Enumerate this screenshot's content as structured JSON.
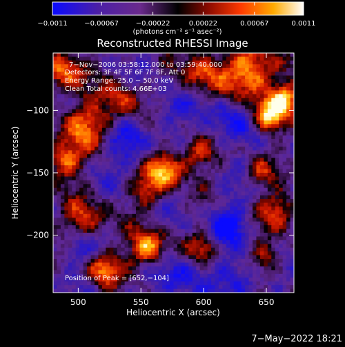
{
  "chart_data": {
    "type": "heatmap",
    "title": "Reconstructed RHESSI Image",
    "xlabel": "Heliocentric X (arcsec)",
    "ylabel": "Heliocentric Y (arcsec)",
    "xlim": [
      480,
      672
    ],
    "ylim": [
      -246,
      -54
    ],
    "xticks": [
      500,
      550,
      600,
      650
    ],
    "yticks": [
      -100,
      -150,
      -200
    ],
    "xtick_labels": [
      "500",
      "550",
      "600",
      "650"
    ],
    "ytick_labels": [
      "−100",
      "−150",
      "−200"
    ],
    "colorbar": {
      "range": [
        -0.0011,
        0.0011
      ],
      "ticks": [
        -0.0011,
        -0.00067,
        -0.00022,
        0.00022,
        0.00067,
        0.0011
      ],
      "tick_labels": [
        "−0.0011",
        "−0.00067",
        "−0.00022",
        "0.00022",
        "0.00067",
        "0.0011"
      ],
      "unit_label": "(photons cm⁻² s⁻¹ asec⁻²)"
    },
    "annotations": [
      "7−Nov−2006 03:58:12.000 to 03:59:40.000",
      "Detectors: 3F 4F 5F 6F 7F 8F, Att 0",
      "Energy Range: 25.0 − 50.0 keV",
      "Clean     Total counts: 4.66E+03",
      "Position of Peak = [652,−104]"
    ],
    "peak": {
      "x": 652,
      "y": -104
    },
    "bright_regions": [
      {
        "x": 490,
        "y": -68,
        "sigma": 12,
        "amp": 0.7
      },
      {
        "x": 505,
        "y": -112,
        "sigma": 14,
        "amp": 0.65
      },
      {
        "x": 488,
        "y": -140,
        "sigma": 10,
        "amp": 0.7
      },
      {
        "x": 535,
        "y": -92,
        "sigma": 11,
        "amp": 0.5
      },
      {
        "x": 600,
        "y": -70,
        "sigma": 12,
        "amp": 0.6
      },
      {
        "x": 640,
        "y": -68,
        "sigma": 16,
        "amp": 0.8
      },
      {
        "x": 652,
        "y": -104,
        "sigma": 9,
        "amp": 1.0
      },
      {
        "x": 665,
        "y": -90,
        "sigma": 8,
        "amp": 0.7
      },
      {
        "x": 570,
        "y": -148,
        "sigma": 10,
        "amp": 0.9
      },
      {
        "x": 595,
        "y": -135,
        "sigma": 9,
        "amp": 0.55
      },
      {
        "x": 555,
        "y": -165,
        "sigma": 9,
        "amp": 0.5
      },
      {
        "x": 505,
        "y": -188,
        "sigma": 12,
        "amp": 0.6
      },
      {
        "x": 520,
        "y": -228,
        "sigma": 10,
        "amp": 0.65
      },
      {
        "x": 555,
        "y": -210,
        "sigma": 10,
        "amp": 0.9
      },
      {
        "x": 600,
        "y": -210,
        "sigma": 8,
        "amp": 0.5
      },
      {
        "x": 660,
        "y": -180,
        "sigma": 10,
        "amp": 0.6
      },
      {
        "x": 650,
        "y": -218,
        "sigma": 9,
        "amp": 0.5
      },
      {
        "x": 645,
        "y": -150,
        "sigma": 8,
        "amp": 0.45
      }
    ],
    "dark_regions": [
      {
        "x": 620,
        "y": -192,
        "sigma": 10,
        "amp": 0.75
      },
      {
        "x": 540,
        "y": -128,
        "sigma": 12,
        "amp": 0.5
      },
      {
        "x": 620,
        "y": -110,
        "sigma": 12,
        "amp": 0.5
      },
      {
        "x": 500,
        "y": -210,
        "sigma": 10,
        "amp": 0.45
      },
      {
        "x": 580,
        "y": -235,
        "sigma": 12,
        "amp": 0.5
      },
      {
        "x": 630,
        "y": -235,
        "sigma": 12,
        "amp": 0.5
      },
      {
        "x": 575,
        "y": -100,
        "sigma": 10,
        "amp": 0.4
      }
    ]
  },
  "footer": {
    "timestamp": "7−May−2022 18:21"
  },
  "colors": {
    "background": "#000000",
    "text": "#ffffff",
    "colormap": [
      "#0a0aff",
      "#2a0aa0",
      "#5a1a9a",
      "#7a2a8a",
      "#000000",
      "#7a0a00",
      "#cc1100",
      "#ff5a00",
      "#ffaa00",
      "#ffee44",
      "#ffffff"
    ]
  }
}
